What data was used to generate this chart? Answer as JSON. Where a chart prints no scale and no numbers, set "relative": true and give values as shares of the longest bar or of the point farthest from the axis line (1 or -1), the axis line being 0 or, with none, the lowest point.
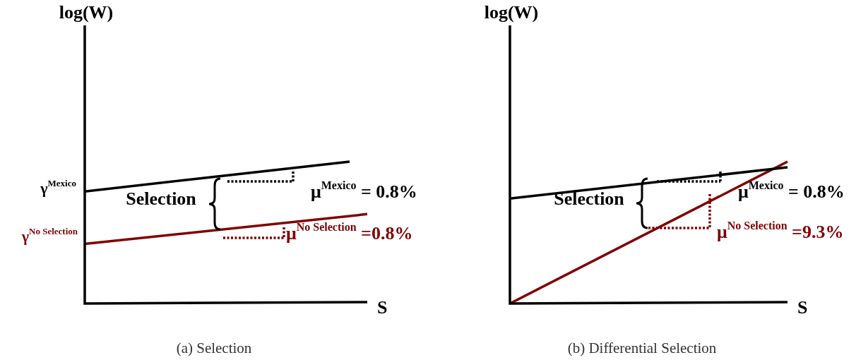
{
  "chart_data": [
    {
      "type": "line",
      "title": "(a) Selection",
      "xlabel": "S",
      "ylabel": "log(W)",
      "relative": true,
      "grid": false,
      "legend": false,
      "marker": "none",
      "line_style": "solid",
      "categories": [
        null,
        null,
        null,
        null,
        null,
        null,
        null,
        null,
        null,
        null,
        null,
        null,
        null,
        null,
        null,
        null,
        null
      ],
      "series": [
        {
          "color": "#000000",
          "values": [
            0.79,
            null,
            null,
            null,
            null,
            null,
            null,
            null,
            null,
            null,
            null,
            null,
            null,
            null,
            null,
            1,
            null
          ]
        },
        {
          "color": "#800000",
          "values": [
            0.42,
            null,
            null,
            null,
            null,
            null,
            null,
            null,
            null,
            null,
            null,
            null,
            null,
            null,
            null,
            null,
            0.63
          ]
        }
      ],
      "annotations": [
        "γ$^{Mexico}$",
        "γ$^{No Selection}$",
        "Selection",
        "μ$^{Mexico}$ = 0.8%",
        "μ$^{No Selection}$ =0.8%"
      ]
    },
    {
      "type": "line",
      "title": "(b) Differential Selection",
      "xlabel": "S",
      "ylabel": "log(W)",
      "relative": true,
      "grid": false,
      "legend": false,
      "marker": "none",
      "line_style": "solid",
      "categories": [
        null,
        null,
        null,
        null,
        null,
        null,
        null,
        null,
        null,
        null,
        null,
        null,
        null,
        null,
        null,
        null,
        null
      ],
      "series": [
        {
          "color": "#000000",
          "values": [
            0.74,
            null,
            null,
            null,
            null,
            null,
            null,
            null,
            null,
            null,
            null,
            null,
            null,
            null,
            null,
            null,
            0.96
          ]
        },
        {
          "color": "#800000",
          "values": [
            0,
            null,
            null,
            null,
            null,
            null,
            null,
            null,
            null,
            null,
            null,
            null,
            null,
            null,
            null,
            null,
            1
          ]
        }
      ],
      "annotations": [
        "Selection",
        "μ$^{Mexico}$ = 0.8%",
        "μ$^{No Selection}$ =9.3%"
      ]
    }
  ]
}
